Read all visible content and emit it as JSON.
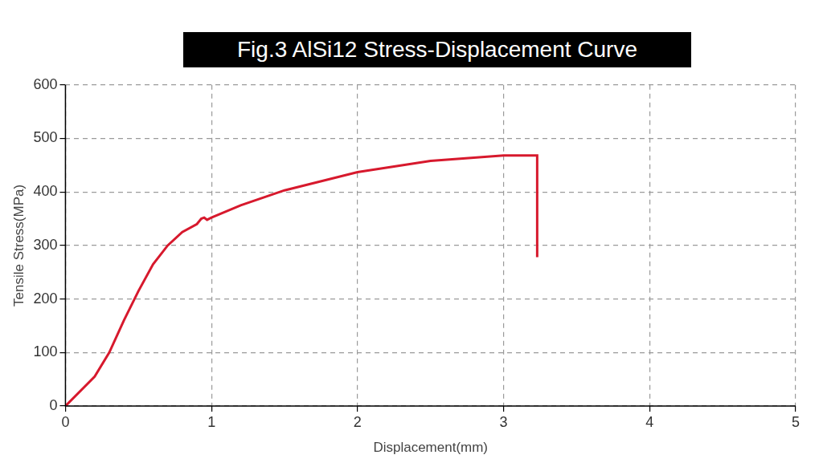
{
  "chart_data": {
    "type": "line",
    "title": "Fig.3 AlSi12 Stress-Displacement Curve",
    "x_label": "Displacement(mm)",
    "y_label": "Tensile Stress(MPa)",
    "x": [
      0,
      0.2,
      0.3,
      0.4,
      0.5,
      0.6,
      0.7,
      0.8,
      0.9,
      0.93,
      0.95,
      0.97,
      1.0,
      1.2,
      1.5,
      2.0,
      2.5,
      3.0,
      3.2,
      3.23,
      3.23
    ],
    "values": [
      0,
      55,
      100,
      160,
      215,
      265,
      300,
      325,
      340,
      350,
      352,
      348,
      352,
      375,
      403,
      437,
      458,
      468,
      468,
      468,
      278
    ],
    "color": "#d7192d",
    "xlim": [
      0,
      5
    ],
    "ylim": [
      0,
      600
    ],
    "xticks": [
      0,
      1,
      2,
      3,
      4,
      5
    ],
    "yticks": [
      0,
      100,
      200,
      300,
      400,
      500,
      600
    ],
    "grid": true
  }
}
